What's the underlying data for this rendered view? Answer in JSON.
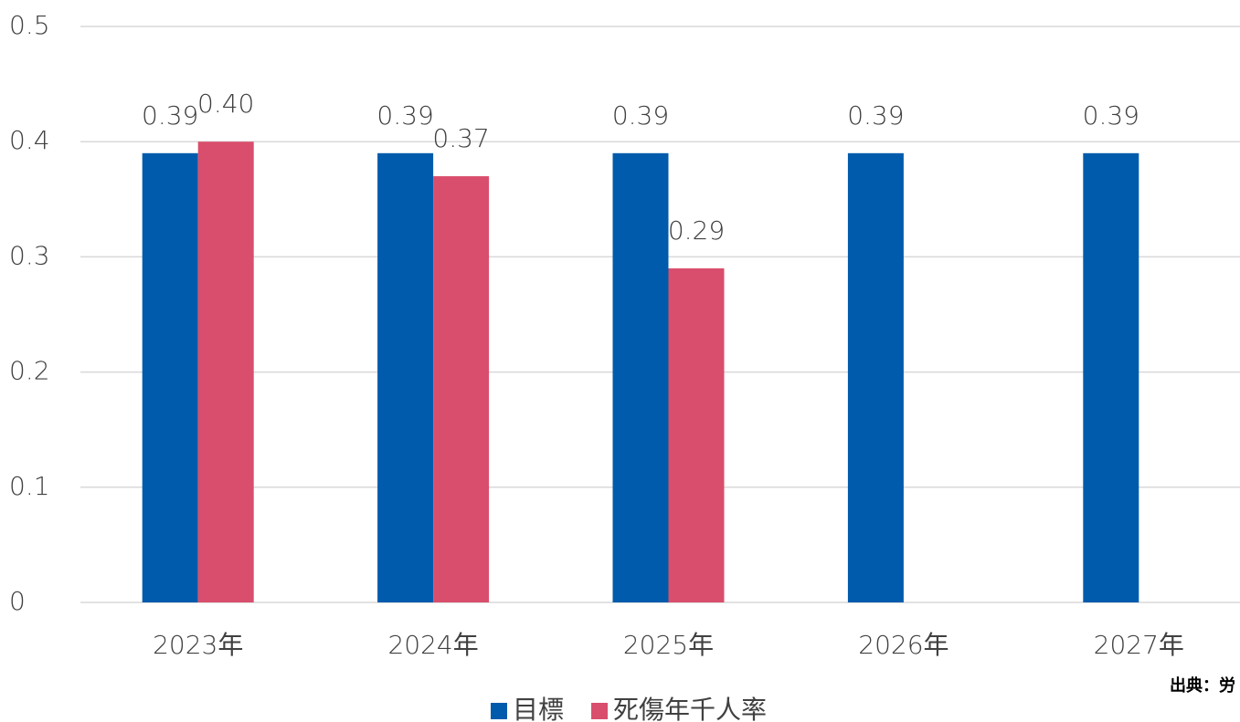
{
  "chart_data": {
    "type": "bar",
    "categories": [
      "2023年",
      "2024年",
      "2025年",
      "2026年",
      "2027年"
    ],
    "series": [
      {
        "name": "目標",
        "color": "#005bac",
        "values": [
          0.39,
          0.39,
          0.39,
          0.39,
          0.39
        ],
        "value_labels": [
          "0.39",
          "0.39",
          "0.39",
          "0.39",
          "0.39"
        ]
      },
      {
        "name": "死傷年千人率",
        "color": "#d94e6c",
        "values": [
          0.4,
          0.37,
          0.29,
          null,
          null
        ],
        "value_labels": [
          "0.40",
          "0.37",
          "0.29",
          null,
          null
        ]
      }
    ],
    "ylim": [
      0,
      0.5
    ],
    "yticks": [
      0,
      0.1,
      0.2,
      0.3,
      0.4,
      0.5
    ],
    "grid": true,
    "legend": "bottom",
    "note": "出典：労"
  }
}
